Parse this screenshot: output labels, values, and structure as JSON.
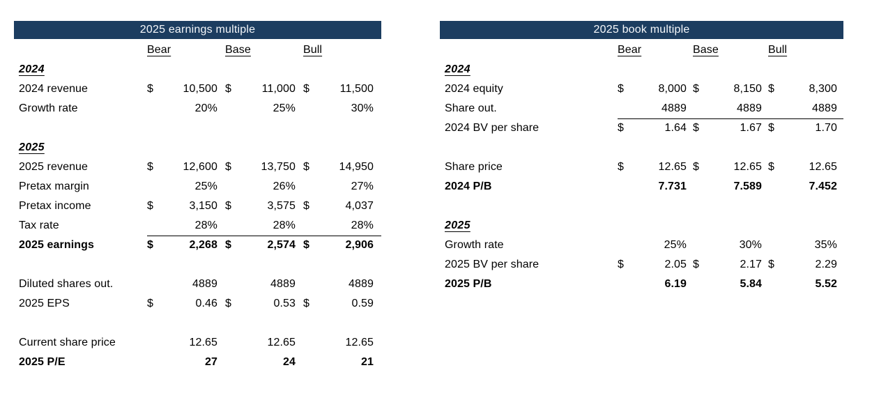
{
  "colors": {
    "header_bg": "#1C3D60",
    "header_text": "#F5F7FA",
    "body_text": "#000000",
    "background": "#FFFFFF"
  },
  "symbols": {
    "dollar": "$"
  },
  "tables": [
    {
      "id": "earnings-multiple",
      "title": "2025 earnings multiple",
      "columns": [
        "Bear",
        "Base",
        "Bull"
      ],
      "rows": [
        {
          "type": "section",
          "label": "2024"
        },
        {
          "type": "data",
          "label": "2024 revenue",
          "dollar": true,
          "values": [
            "10,500",
            "11,000",
            "11,500"
          ]
        },
        {
          "type": "data",
          "label": "Growth rate",
          "dollar": false,
          "values": [
            "20%",
            "25%",
            "30%"
          ]
        },
        {
          "type": "blank"
        },
        {
          "type": "section",
          "label": "2025"
        },
        {
          "type": "data",
          "label": "2025 revenue",
          "dollar": true,
          "values": [
            "12,600",
            "13,750",
            "14,950"
          ]
        },
        {
          "type": "data",
          "label": "Pretax margin",
          "dollar": false,
          "values": [
            "25%",
            "26%",
            "27%"
          ]
        },
        {
          "type": "data",
          "label": "Pretax income",
          "dollar": true,
          "values": [
            "3,150",
            "3,575",
            "4,037"
          ]
        },
        {
          "type": "data",
          "label": "Tax rate",
          "dollar": false,
          "values": [
            "28%",
            "28%",
            "28%"
          ],
          "line_below": true
        },
        {
          "type": "data",
          "label": "2025 earnings",
          "dollar": true,
          "bold": true,
          "values": [
            "2,268",
            "2,574",
            "2,906"
          ]
        },
        {
          "type": "blank"
        },
        {
          "type": "data",
          "label": "Diluted shares out.",
          "dollar": false,
          "values": [
            "4889",
            "4889",
            "4889"
          ]
        },
        {
          "type": "data",
          "label": "2025 EPS",
          "dollar": true,
          "values": [
            "0.46",
            "0.53",
            "0.59"
          ]
        },
        {
          "type": "blank"
        },
        {
          "type": "data",
          "label": "Current share price",
          "dollar": false,
          "values": [
            "12.65",
            "12.65",
            "12.65"
          ]
        },
        {
          "type": "data",
          "label": "2025 P/E",
          "dollar": false,
          "bold": true,
          "values": [
            "27",
            "24",
            "21"
          ]
        }
      ]
    },
    {
      "id": "book-multiple",
      "title": "2025 book multiple",
      "columns": [
        "Bear",
        "Base",
        "Bull"
      ],
      "rows": [
        {
          "type": "section",
          "label": "2024"
        },
        {
          "type": "data",
          "label": "2024 equity",
          "dollar": true,
          "values": [
            "8,000",
            "8,150",
            "8,300"
          ]
        },
        {
          "type": "data",
          "label": "Share out.",
          "dollar": false,
          "values": [
            "4889",
            "4889",
            "4889"
          ],
          "line_below": true
        },
        {
          "type": "data",
          "label": "2024 BV per share",
          "dollar": true,
          "values": [
            "1.64",
            "1.67",
            "1.70"
          ]
        },
        {
          "type": "blank"
        },
        {
          "type": "data",
          "label": "Share price",
          "dollar": true,
          "values": [
            "12.65",
            "12.65",
            "12.65"
          ]
        },
        {
          "type": "data",
          "label": "2024 P/B",
          "dollar": false,
          "bold": true,
          "values": [
            "7.731",
            "7.589",
            "7.452"
          ]
        },
        {
          "type": "blank"
        },
        {
          "type": "section",
          "label": "2025"
        },
        {
          "type": "data",
          "label": "Growth rate",
          "dollar": false,
          "values": [
            "25%",
            "30%",
            "35%"
          ]
        },
        {
          "type": "data",
          "label": "2025 BV per share",
          "dollar": true,
          "values": [
            "2.05",
            "2.17",
            "2.29"
          ]
        },
        {
          "type": "data",
          "label": "2025 P/B",
          "dollar": false,
          "bold": true,
          "values": [
            "6.19",
            "5.84",
            "5.52"
          ]
        }
      ]
    }
  ]
}
